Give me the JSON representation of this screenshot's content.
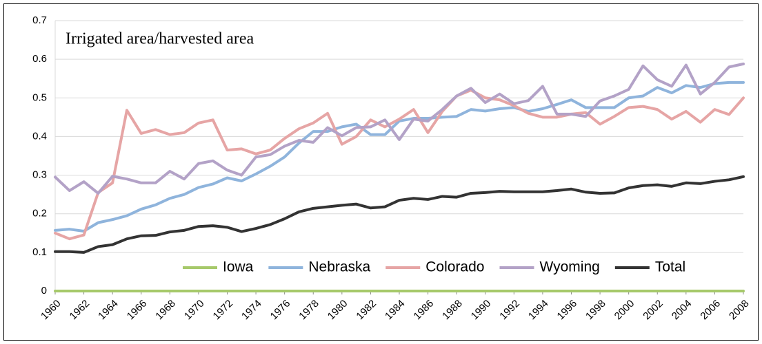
{
  "chart_data": {
    "type": "line",
    "annotation": "Irrigated area/harvested area",
    "x": [
      1960,
      1961,
      1962,
      1963,
      1964,
      1965,
      1966,
      1967,
      1968,
      1969,
      1970,
      1971,
      1972,
      1973,
      1974,
      1975,
      1976,
      1977,
      1978,
      1979,
      1980,
      1981,
      1982,
      1983,
      1984,
      1985,
      1986,
      1987,
      1988,
      1989,
      1990,
      1991,
      1992,
      1993,
      1994,
      1995,
      1996,
      1997,
      1998,
      1999,
      2000,
      2001,
      2002,
      2003,
      2004,
      2005,
      2006,
      2007,
      2008
    ],
    "xlim": [
      1960,
      2008
    ],
    "xticks": [
      1960,
      1962,
      1964,
      1966,
      1968,
      1970,
      1972,
      1974,
      1976,
      1978,
      1980,
      1982,
      1984,
      1986,
      1988,
      1990,
      1992,
      1994,
      1996,
      1998,
      2000,
      2002,
      2004,
      2006,
      2008
    ],
    "ylim": [
      0,
      0.7
    ],
    "yticks": [
      0,
      0.1,
      0.2,
      0.3,
      0.4,
      0.5,
      0.6,
      0.7
    ],
    "grid": true,
    "legend": "bottom-right",
    "series": [
      {
        "name": "Iowa",
        "color": "#a6c96a",
        "values": [
          0,
          0,
          0,
          0,
          0,
          0,
          0,
          0,
          0,
          0,
          0,
          0,
          0,
          0,
          0,
          0,
          0,
          0,
          0,
          0,
          0,
          0,
          0,
          0,
          0,
          0,
          0,
          0,
          0,
          0,
          0,
          0,
          0,
          0,
          0,
          0,
          0,
          0,
          0,
          0,
          0,
          0,
          0,
          0,
          0,
          0,
          0,
          0,
          0
        ]
      },
      {
        "name": "Nebraska",
        "color": "#8fb4dc",
        "values": [
          0.157,
          0.16,
          0.155,
          0.177,
          0.185,
          0.195,
          0.212,
          0.223,
          0.24,
          0.25,
          0.268,
          0.277,
          0.293,
          0.285,
          0.303,
          0.323,
          0.347,
          0.383,
          0.413,
          0.413,
          0.425,
          0.432,
          0.405,
          0.405,
          0.44,
          0.447,
          0.447,
          0.45,
          0.452,
          0.47,
          0.466,
          0.472,
          0.475,
          0.465,
          0.472,
          0.483,
          0.495,
          0.475,
          0.475,
          0.475,
          0.5,
          0.505,
          0.527,
          0.513,
          0.532,
          0.527,
          0.537,
          0.54,
          0.54
        ]
      },
      {
        "name": "Colorado",
        "color": "#e6a5a5",
        "values": [
          0.15,
          0.135,
          0.145,
          0.255,
          0.28,
          0.468,
          0.408,
          0.418,
          0.405,
          0.41,
          0.435,
          0.443,
          0.365,
          0.368,
          0.355,
          0.365,
          0.395,
          0.42,
          0.435,
          0.46,
          0.38,
          0.4,
          0.443,
          0.425,
          0.445,
          0.47,
          0.41,
          0.465,
          0.505,
          0.52,
          0.5,
          0.495,
          0.48,
          0.46,
          0.45,
          0.45,
          0.458,
          0.462,
          0.432,
          0.452,
          0.475,
          0.478,
          0.47,
          0.445,
          0.465,
          0.437,
          0.47,
          0.457,
          0.5
        ]
      },
      {
        "name": "Wyoming",
        "color": "#b3a2c7",
        "values": [
          0.295,
          0.26,
          0.283,
          0.253,
          0.297,
          0.29,
          0.28,
          0.28,
          0.31,
          0.29,
          0.33,
          0.337,
          0.313,
          0.3,
          0.347,
          0.353,
          0.375,
          0.39,
          0.385,
          0.423,
          0.402,
          0.423,
          0.425,
          0.443,
          0.392,
          0.445,
          0.44,
          0.47,
          0.505,
          0.525,
          0.488,
          0.51,
          0.485,
          0.493,
          0.53,
          0.458,
          0.458,
          0.452,
          0.492,
          0.505,
          0.522,
          0.583,
          0.547,
          0.53,
          0.585,
          0.51,
          0.54,
          0.58,
          0.588
        ]
      },
      {
        "name": "Total",
        "color": "#333333",
        "values": [
          0.102,
          0.102,
          0.1,
          0.115,
          0.12,
          0.135,
          0.143,
          0.144,
          0.153,
          0.157,
          0.167,
          0.169,
          0.165,
          0.154,
          0.162,
          0.172,
          0.187,
          0.205,
          0.214,
          0.218,
          0.222,
          0.225,
          0.215,
          0.218,
          0.235,
          0.24,
          0.237,
          0.245,
          0.243,
          0.253,
          0.255,
          0.258,
          0.257,
          0.257,
          0.257,
          0.26,
          0.264,
          0.256,
          0.253,
          0.254,
          0.267,
          0.273,
          0.275,
          0.271,
          0.28,
          0.278,
          0.284,
          0.288,
          0.296
        ]
      }
    ]
  }
}
